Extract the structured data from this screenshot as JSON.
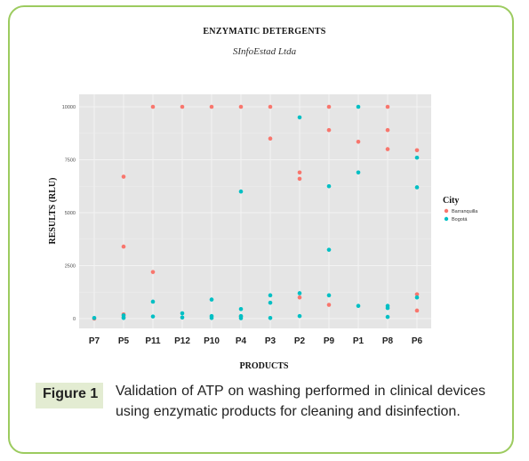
{
  "figure": {
    "label": "Figure 1",
    "caption": "Validation of ATP on washing performed in clinical devices using enzymatic products for cleaning and disinfection."
  },
  "colors": {
    "frame": "#9ccb5f",
    "panel": "#e5e5e5",
    "grid": "#f3f3f3",
    "barranquilla": "#f8766d",
    "bogota": "#00bfc4"
  },
  "chart_data": {
    "type": "scatter",
    "title": "ENZYMATIC DETERGENTS",
    "subtitle": "SInfoEstad Ltda",
    "xlabel": "PRODUCTS",
    "ylabel": "RESULTS (RLU)",
    "categories": [
      "P7",
      "P5",
      "P11",
      "P12",
      "P10",
      "P4",
      "P3",
      "P2",
      "P9",
      "P1",
      "P8",
      "P6"
    ],
    "ylim": [
      0,
      10000
    ],
    "yticks": [
      0,
      2500,
      5000,
      7500,
      10000
    ],
    "grid": true,
    "legend": {
      "title": "City",
      "position": "right"
    },
    "series": [
      {
        "name": "Barranquilla",
        "color": "#f8766d",
        "points": [
          [
            "P7",
            0
          ],
          [
            "P5",
            6700
          ],
          [
            "P5",
            3400
          ],
          [
            "P5",
            200
          ],
          [
            "P5",
            50
          ],
          [
            "P11",
            10000
          ],
          [
            "P11",
            2200
          ],
          [
            "P12",
            10000
          ],
          [
            "P10",
            10000
          ],
          [
            "P4",
            10000
          ],
          [
            "P4",
            100
          ],
          [
            "P3",
            10000
          ],
          [
            "P3",
            8500
          ],
          [
            "P2",
            6900
          ],
          [
            "P2",
            6600
          ],
          [
            "P2",
            1000
          ],
          [
            "P9",
            10000
          ],
          [
            "P9",
            8900
          ],
          [
            "P9",
            650
          ],
          [
            "P1",
            8350
          ],
          [
            "P8",
            10000
          ],
          [
            "P8",
            8900
          ],
          [
            "P8",
            8000
          ],
          [
            "P6",
            7950
          ],
          [
            "P6",
            1150
          ],
          [
            "P6",
            380
          ]
        ]
      },
      {
        "name": "Bogotá",
        "color": "#00bfc4",
        "points": [
          [
            "P7",
            30
          ],
          [
            "P5",
            150
          ],
          [
            "P5",
            30
          ],
          [
            "P11",
            800
          ],
          [
            "P11",
            100
          ],
          [
            "P12",
            250
          ],
          [
            "P12",
            50
          ],
          [
            "P10",
            900
          ],
          [
            "P10",
            120
          ],
          [
            "P10",
            30
          ],
          [
            "P4",
            6000
          ],
          [
            "P4",
            450
          ],
          [
            "P4",
            120
          ],
          [
            "P4",
            20
          ],
          [
            "P3",
            1100
          ],
          [
            "P3",
            750
          ],
          [
            "P3",
            30
          ],
          [
            "P2",
            9500
          ],
          [
            "P2",
            1200
          ],
          [
            "P2",
            120
          ],
          [
            "P9",
            6250
          ],
          [
            "P9",
            3250
          ],
          [
            "P9",
            1100
          ],
          [
            "P1",
            10000
          ],
          [
            "P1",
            6900
          ],
          [
            "P1",
            600
          ],
          [
            "P8",
            600
          ],
          [
            "P8",
            500
          ],
          [
            "P8",
            80
          ],
          [
            "P6",
            7600
          ],
          [
            "P6",
            6200
          ],
          [
            "P6",
            1000
          ]
        ]
      }
    ]
  }
}
